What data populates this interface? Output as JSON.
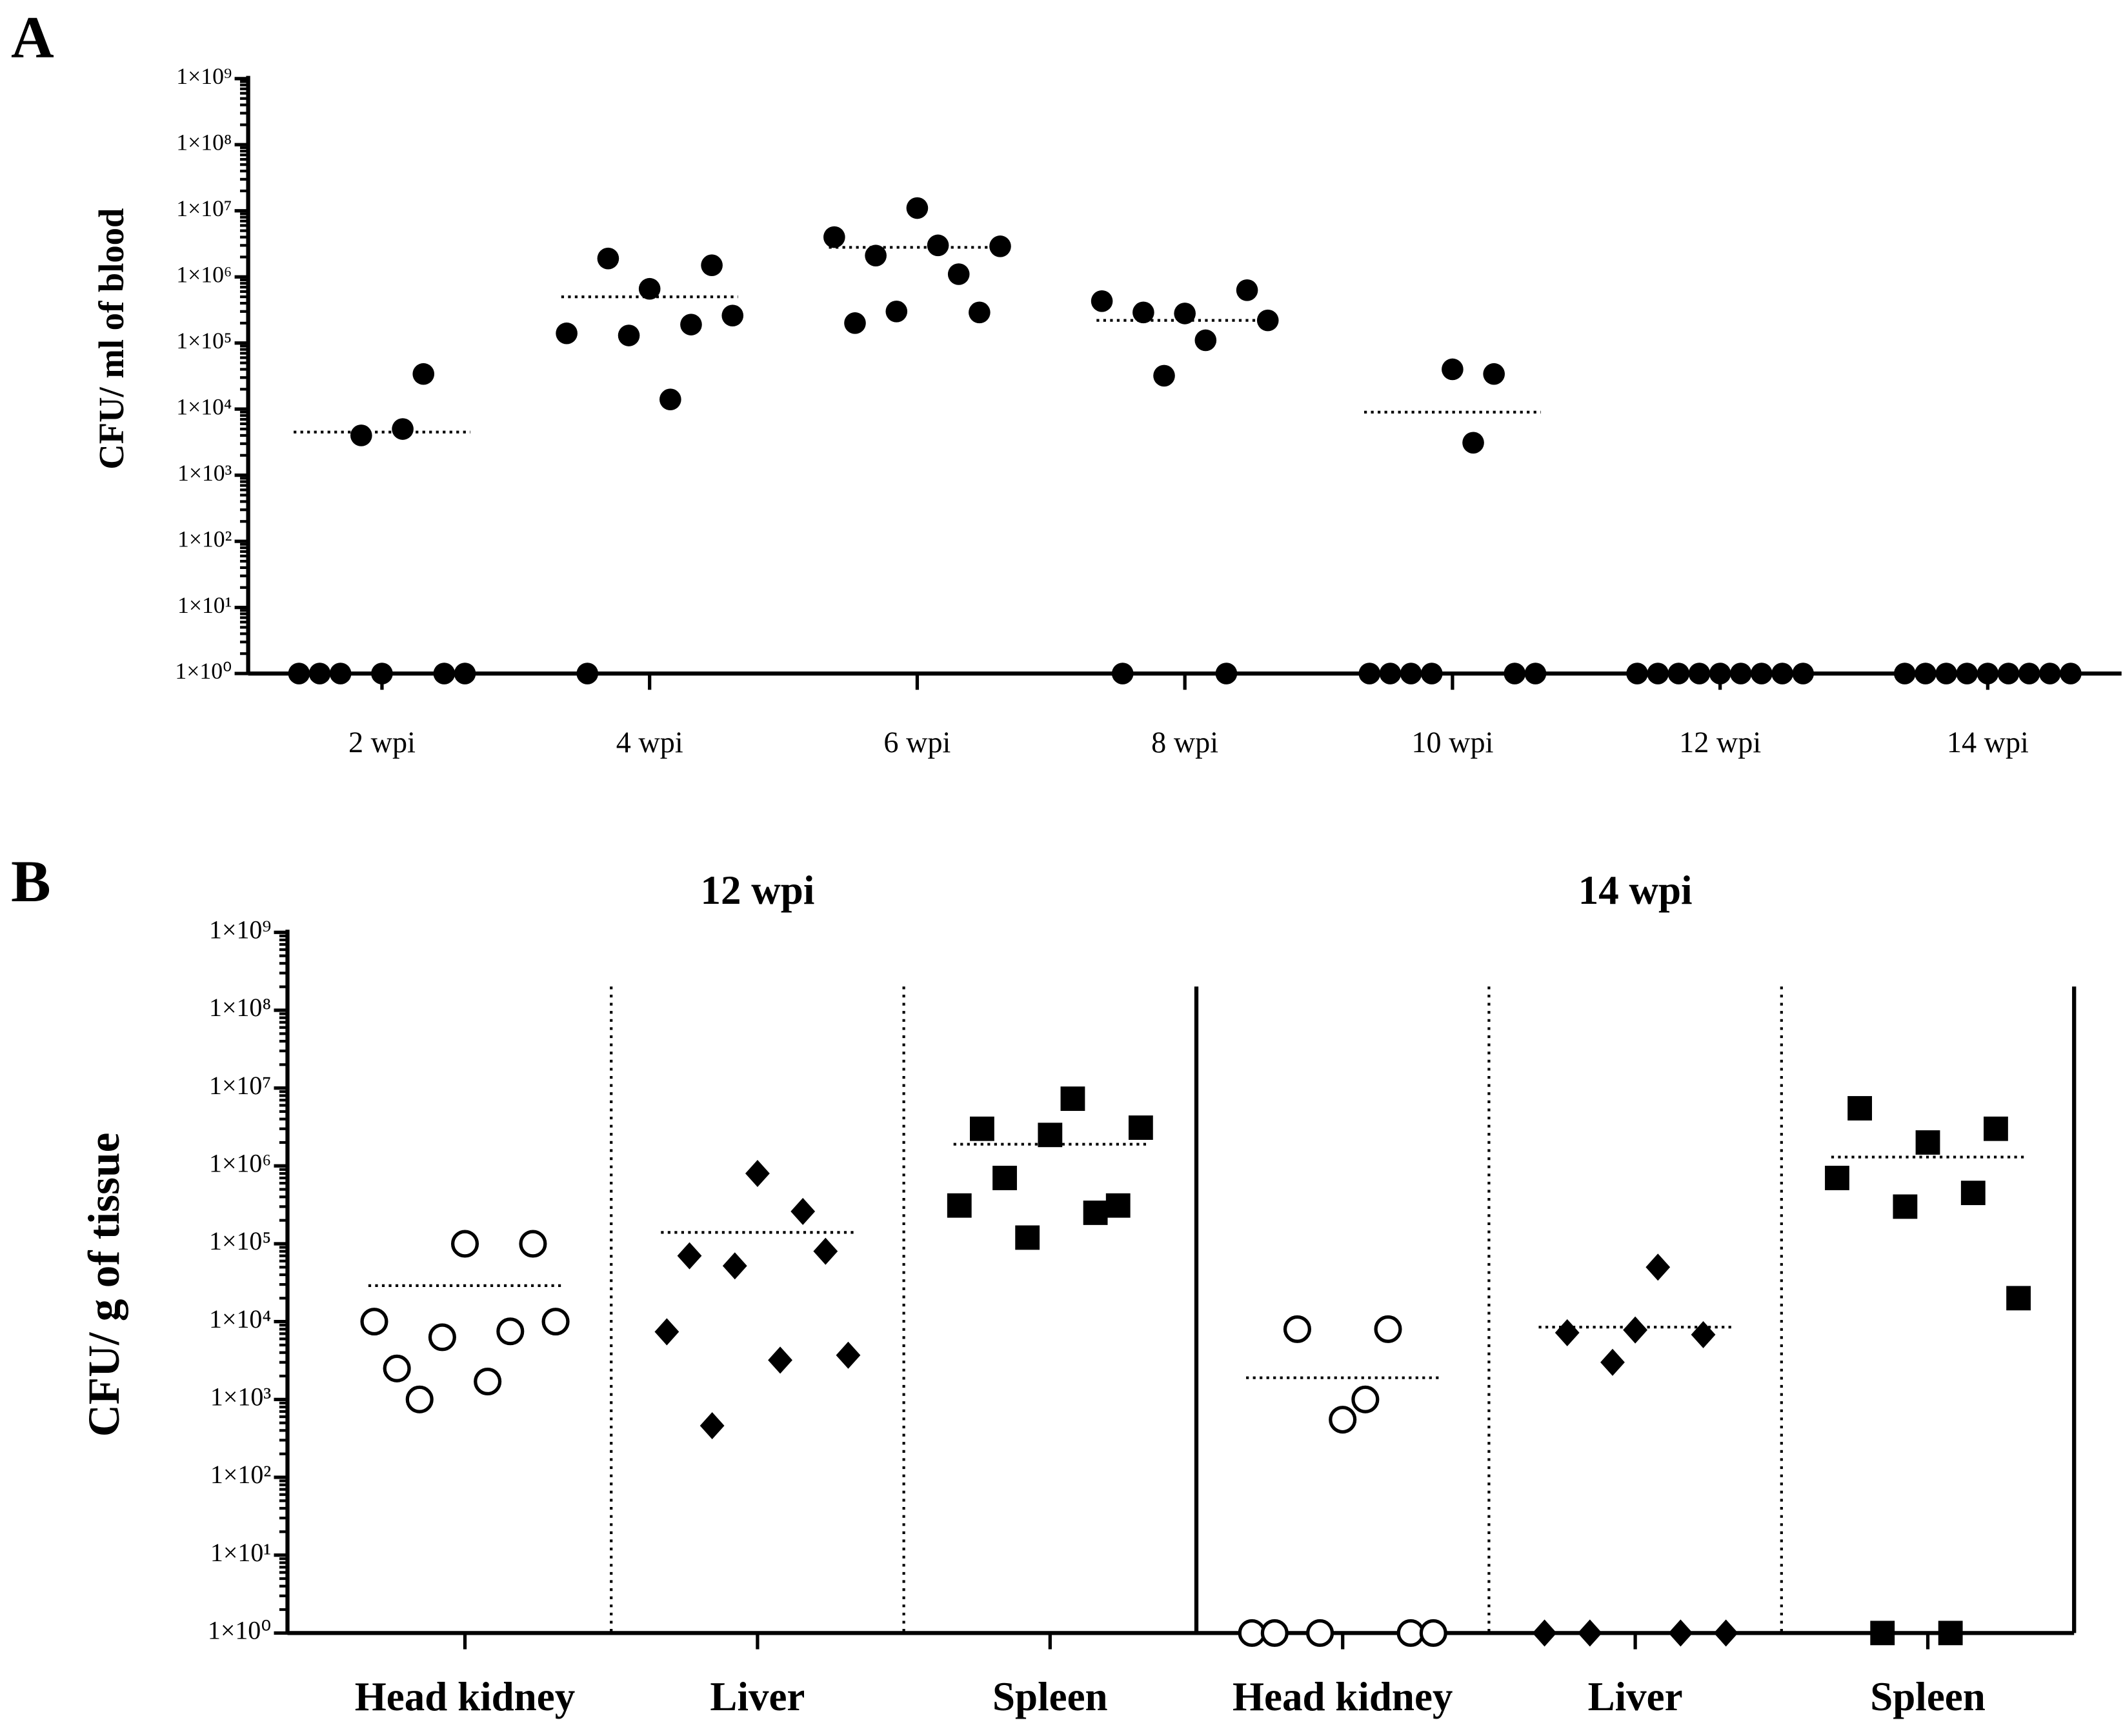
{
  "chart_data": [
    {
      "type": "scatter",
      "panel": "A",
      "ylabel": "CFU/ ml of blood",
      "log_y": true,
      "categories": [
        "2 wpi",
        "4 wpi",
        "6 wpi",
        "8 wpi",
        "10 wpi",
        "12 wpi",
        "14 wpi"
      ],
      "markers": [
        "filled-circle",
        "filled-circle",
        "filled-circle",
        "filled-circle",
        "filled-circle",
        "filled-circle",
        "filled-circle"
      ],
      "values": [
        [
          1,
          1,
          1,
          4000,
          1,
          5000,
          34000,
          1,
          1
        ],
        [
          140000,
          1,
          1900000,
          130000,
          660000,
          14000,
          190000,
          1500000,
          260000
        ],
        [
          4000000,
          200000,
          2100000,
          300000,
          11000000,
          3000000,
          1100000,
          290000,
          2900000
        ],
        [
          430000,
          1,
          290000,
          32000,
          280000,
          110000,
          1,
          630000,
          220000
        ],
        [
          1,
          1,
          1,
          1,
          40000,
          3100,
          34000,
          1,
          1
        ],
        [
          1,
          1,
          1,
          1,
          1,
          1,
          1,
          1,
          1
        ],
        [
          1,
          1,
          1,
          1,
          1,
          1,
          1,
          1,
          1
        ]
      ],
      "medians": [
        4500,
        500000,
        2800000,
        220000,
        9000,
        null,
        null
      ],
      "ylim": [
        1,
        1000000000
      ],
      "yticks": [
        {
          "value": 1,
          "label": "1×10⁰"
        },
        {
          "value": 10,
          "label": "1×10¹"
        },
        {
          "value": 100,
          "label": "1×10²"
        },
        {
          "value": 1000,
          "label": "1×10³"
        },
        {
          "value": 10000,
          "label": "1×10⁴"
        },
        {
          "value": 100000,
          "label": "1×10⁵"
        },
        {
          "value": 1000000,
          "label": "1×10⁶"
        },
        {
          "value": 10000000,
          "label": "1×10⁷"
        },
        {
          "value": 100000000,
          "label": "1×10⁸"
        },
        {
          "value": 1000000000,
          "label": "1×10⁹"
        }
      ]
    },
    {
      "type": "scatter",
      "panel": "B",
      "ylabel": "CFU/ g of tissue",
      "log_y": true,
      "group_labels": [
        "12 wpi",
        "14 wpi"
      ],
      "categories": [
        "Head kidney",
        "Liver",
        "Spleen",
        "Head kidney",
        "Liver",
        "Spleen"
      ],
      "markers": [
        "open-circle",
        "diamond",
        "square",
        "open-circle",
        "diamond",
        "square"
      ],
      "values": [
        [
          10000,
          2500,
          1000,
          6300,
          100000,
          1700,
          7500,
          100000,
          10000
        ],
        [
          7400,
          70000,
          460,
          52000,
          800000,
          3200,
          260000,
          80000,
          3700
        ],
        [
          310000,
          3000000,
          700000,
          120000,
          2500000,
          7300000,
          250000,
          310000,
          3100000
        ],
        [
          1,
          1,
          8000,
          1,
          550,
          1000,
          8000,
          1,
          1
        ],
        [
          1,
          7200,
          1,
          3000,
          7800,
          50000,
          1,
          6800,
          1
        ],
        [
          700000,
          5500000,
          1,
          300000,
          2000000,
          1,
          450000,
          3000000,
          20000
        ]
      ],
      "medians": [
        29000,
        140000,
        1900000,
        1900,
        8500,
        1300000
      ],
      "ylim": [
        1,
        1000000000
      ],
      "yticks": [
        {
          "value": 1,
          "label": "1×10⁰"
        },
        {
          "value": 10,
          "label": "1×10¹"
        },
        {
          "value": 100,
          "label": "1×10²"
        },
        {
          "value": 1000,
          "label": "1×10³"
        },
        {
          "value": 10000,
          "label": "1×10⁴"
        },
        {
          "value": 100000,
          "label": "1×10⁵"
        },
        {
          "value": 1000000,
          "label": "1×10⁶"
        },
        {
          "value": 10000000,
          "label": "1×10⁷"
        },
        {
          "value": 100000000,
          "label": "1×10⁸"
        },
        {
          "value": 1000000000,
          "label": "1×10⁹"
        }
      ]
    }
  ]
}
